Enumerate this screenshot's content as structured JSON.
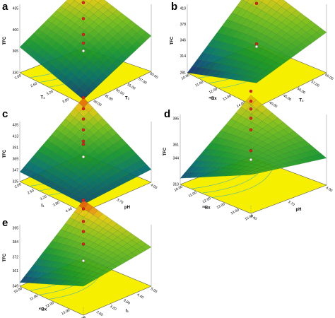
{
  "chart_data": [
    {
      "type": "surface3d",
      "panel": "a",
      "zlabel": "TFC",
      "z_ticks": [
        "435",
        "400",
        "365",
        "330"
      ],
      "x_factor": "T₁",
      "x_ticks": [
        "2.00",
        "2.60",
        "3.20",
        "3.80",
        "4.40"
      ],
      "y_factor": "T₂",
      "y_ticks": [
        "35.00",
        "40.00",
        "45.00",
        "50.00",
        "55.00",
        "57.00",
        "60.00"
      ],
      "corners_z": {
        "front": 338,
        "left": 372,
        "right": 388,
        "back": 435
      },
      "design_points_z": [
        435,
        404,
        378,
        352,
        338
      ]
    },
    {
      "type": "surface3d",
      "panel": "b",
      "zlabel": "TFC",
      "z_ticks": [
        "410",
        "378",
        "346",
        "314",
        "281"
      ],
      "x_factor": "ᵐBx",
      "x_ticks": [
        "10.00",
        "11.00",
        "12.00",
        "13.00",
        "14.00",
        "15.00"
      ],
      "y_factor": "T₂",
      "y_ticks": [
        "35.00",
        "40.00",
        "45.00",
        "50.00",
        "57.00",
        "60.00"
      ],
      "corners_z": {
        "front": 330,
        "left": 281,
        "right": 362,
        "back": 410
      },
      "design_points_z": [
        410,
        394,
        376,
        362,
        281
      ]
    },
    {
      "type": "surface3d",
      "panel": "c",
      "zlabel": "TFC",
      "z_ticks": [
        "435",
        "413",
        "391",
        "369",
        "347",
        "325"
      ],
      "x_factor": "I₁",
      "x_ticks": [
        "2.00",
        "2.60",
        "3.20",
        "3.80",
        "4.40",
        "5.00"
      ],
      "y_factor": "pH",
      "y_ticks": [
        "3.40",
        "3.70",
        "4.00"
      ],
      "corners_z": {
        "front": 340,
        "left": 344,
        "right": 350,
        "back": 435
      },
      "design_points_z": [
        435,
        413,
        393,
        372,
        350,
        344
      ]
    },
    {
      "type": "surface3d",
      "panel": "d",
      "zlabel": "TFC",
      "z_ticks": [
        "395",
        "361",
        "344",
        "310"
      ],
      "x_factor": "ᵐBx",
      "x_ticks": [
        "10.00",
        "11.00",
        "12.00",
        "13.00",
        "14.00",
        "15.00"
      ],
      "y_factor": "pH",
      "y_ticks": [
        "3.40",
        "3.70",
        "4.00"
      ],
      "corners_z": {
        "front": 360,
        "left": 318,
        "right": 345,
        "back": 390
      },
      "design_points_z": [
        395,
        382,
        372,
        360,
        345,
        318
      ]
    },
    {
      "type": "surface3d",
      "panel": "e",
      "zlabel": "TFC",
      "z_ticks": [
        "395",
        "384",
        "372",
        "361",
        "349"
      ],
      "x_factor": "ᵐBx",
      "x_ticks": [
        "10.00",
        "11.00",
        "12.00",
        "13.00",
        "14.00"
      ],
      "y_factor": "I₁",
      "y_ticks": [
        "2.00",
        "2.60",
        "3.20",
        "3.80",
        "4.40",
        "5.00"
      ],
      "corners_z": {
        "front": 372,
        "left": 352,
        "right": 380,
        "back": 395
      },
      "design_points_z": [
        395,
        388,
        378,
        370,
        360
      ]
    }
  ]
}
